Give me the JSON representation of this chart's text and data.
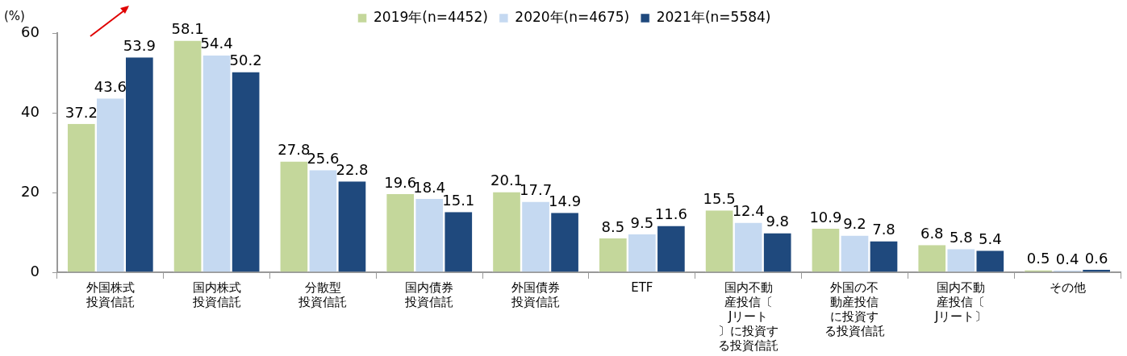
{
  "chart_data": {
    "type": "bar",
    "ylabel": "(%)",
    "categories": [
      "外国株式投資信託",
      "国内株式投資信託",
      "分散型投資信託",
      "国内債券投資信託",
      "外国債券投資信託",
      "ETF",
      "国内不動産投信〔Jリート〕に投資する投資信託",
      "外国の不動産投信に投資する投資信託",
      "国内不動産投信〔Jリート〕",
      "その他"
    ],
    "series": [
      {
        "name": "2019年(n=4452)",
        "color": "#c4d79b",
        "values": [
          37.2,
          58.1,
          27.8,
          19.6,
          20.1,
          8.5,
          15.5,
          10.9,
          6.8,
          0.5
        ]
      },
      {
        "name": "2020年(n=4675)",
        "color": "#c5d9f1",
        "values": [
          43.6,
          54.4,
          25.6,
          18.4,
          17.7,
          9.5,
          12.4,
          9.2,
          5.8,
          0.4
        ]
      },
      {
        "name": "2021年(n=5584)",
        "color": "#1f497d",
        "values": [
          53.9,
          50.2,
          22.8,
          15.1,
          14.9,
          11.6,
          9.8,
          7.8,
          5.4,
          0.6
        ]
      }
    ],
    "ylim": [
      0,
      60
    ],
    "yticks": [
      0,
      20,
      40,
      60
    ],
    "grid": false,
    "legend": "top",
    "data_labels": true
  }
}
